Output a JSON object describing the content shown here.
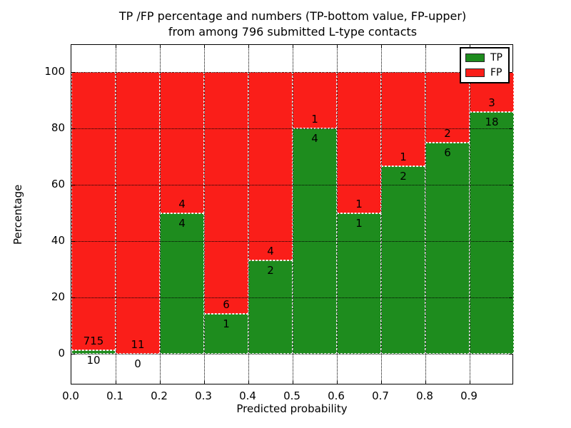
{
  "figure": {
    "title_line1": "TP /FP percentage and numbers (TP-bottom value, FP-upper)",
    "title_line2": "from among 796 submitted L-type contacts",
    "xlabel": "Predicted probability",
    "ylabel": "Percentage"
  },
  "legend": {
    "position": "upper right",
    "items": [
      {
        "label": "TP",
        "color": "#1e8c1e"
      },
      {
        "label": "FP",
        "color": "#fa1e19"
      }
    ]
  },
  "chart_data": {
    "type": "bar",
    "stacked": true,
    "title": "TP /FP percentage and numbers (TP-bottom value, FP-upper) from among 796 submitted L-type contacts",
    "xlabel": "Predicted probability",
    "ylabel": "Percentage",
    "xlim": [
      0.0,
      1.0
    ],
    "ylim": [
      -11,
      109.5
    ],
    "grid": true,
    "legend_position": "upper right",
    "x_ticks": [
      "0.0",
      "0.1",
      "0.2",
      "0.3",
      "0.4",
      "0.5",
      "0.6",
      "0.7",
      "0.8",
      "0.9"
    ],
    "y_ticks": [
      0,
      20,
      40,
      60,
      80,
      100
    ],
    "bin_edges": [
      0.0,
      0.1,
      0.2,
      0.3,
      0.4,
      0.5,
      0.6,
      0.7,
      0.8,
      0.9,
      1.0
    ],
    "series": [
      {
        "name": "TP",
        "color": "#1e8c1e",
        "counts": [
          10,
          0,
          4,
          1,
          2,
          4,
          1,
          2,
          6,
          18
        ],
        "percent": [
          1.38,
          0.0,
          50.0,
          14.29,
          33.33,
          80.0,
          50.0,
          66.67,
          75.0,
          85.71
        ]
      },
      {
        "name": "FP",
        "color": "#fa1e19",
        "counts": [
          715,
          11,
          4,
          6,
          4,
          1,
          1,
          1,
          2,
          3
        ],
        "percent": [
          98.62,
          100.0,
          50.0,
          85.71,
          66.67,
          20.0,
          50.0,
          33.33,
          25.0,
          14.29
        ]
      }
    ],
    "total_submitted": 796
  }
}
